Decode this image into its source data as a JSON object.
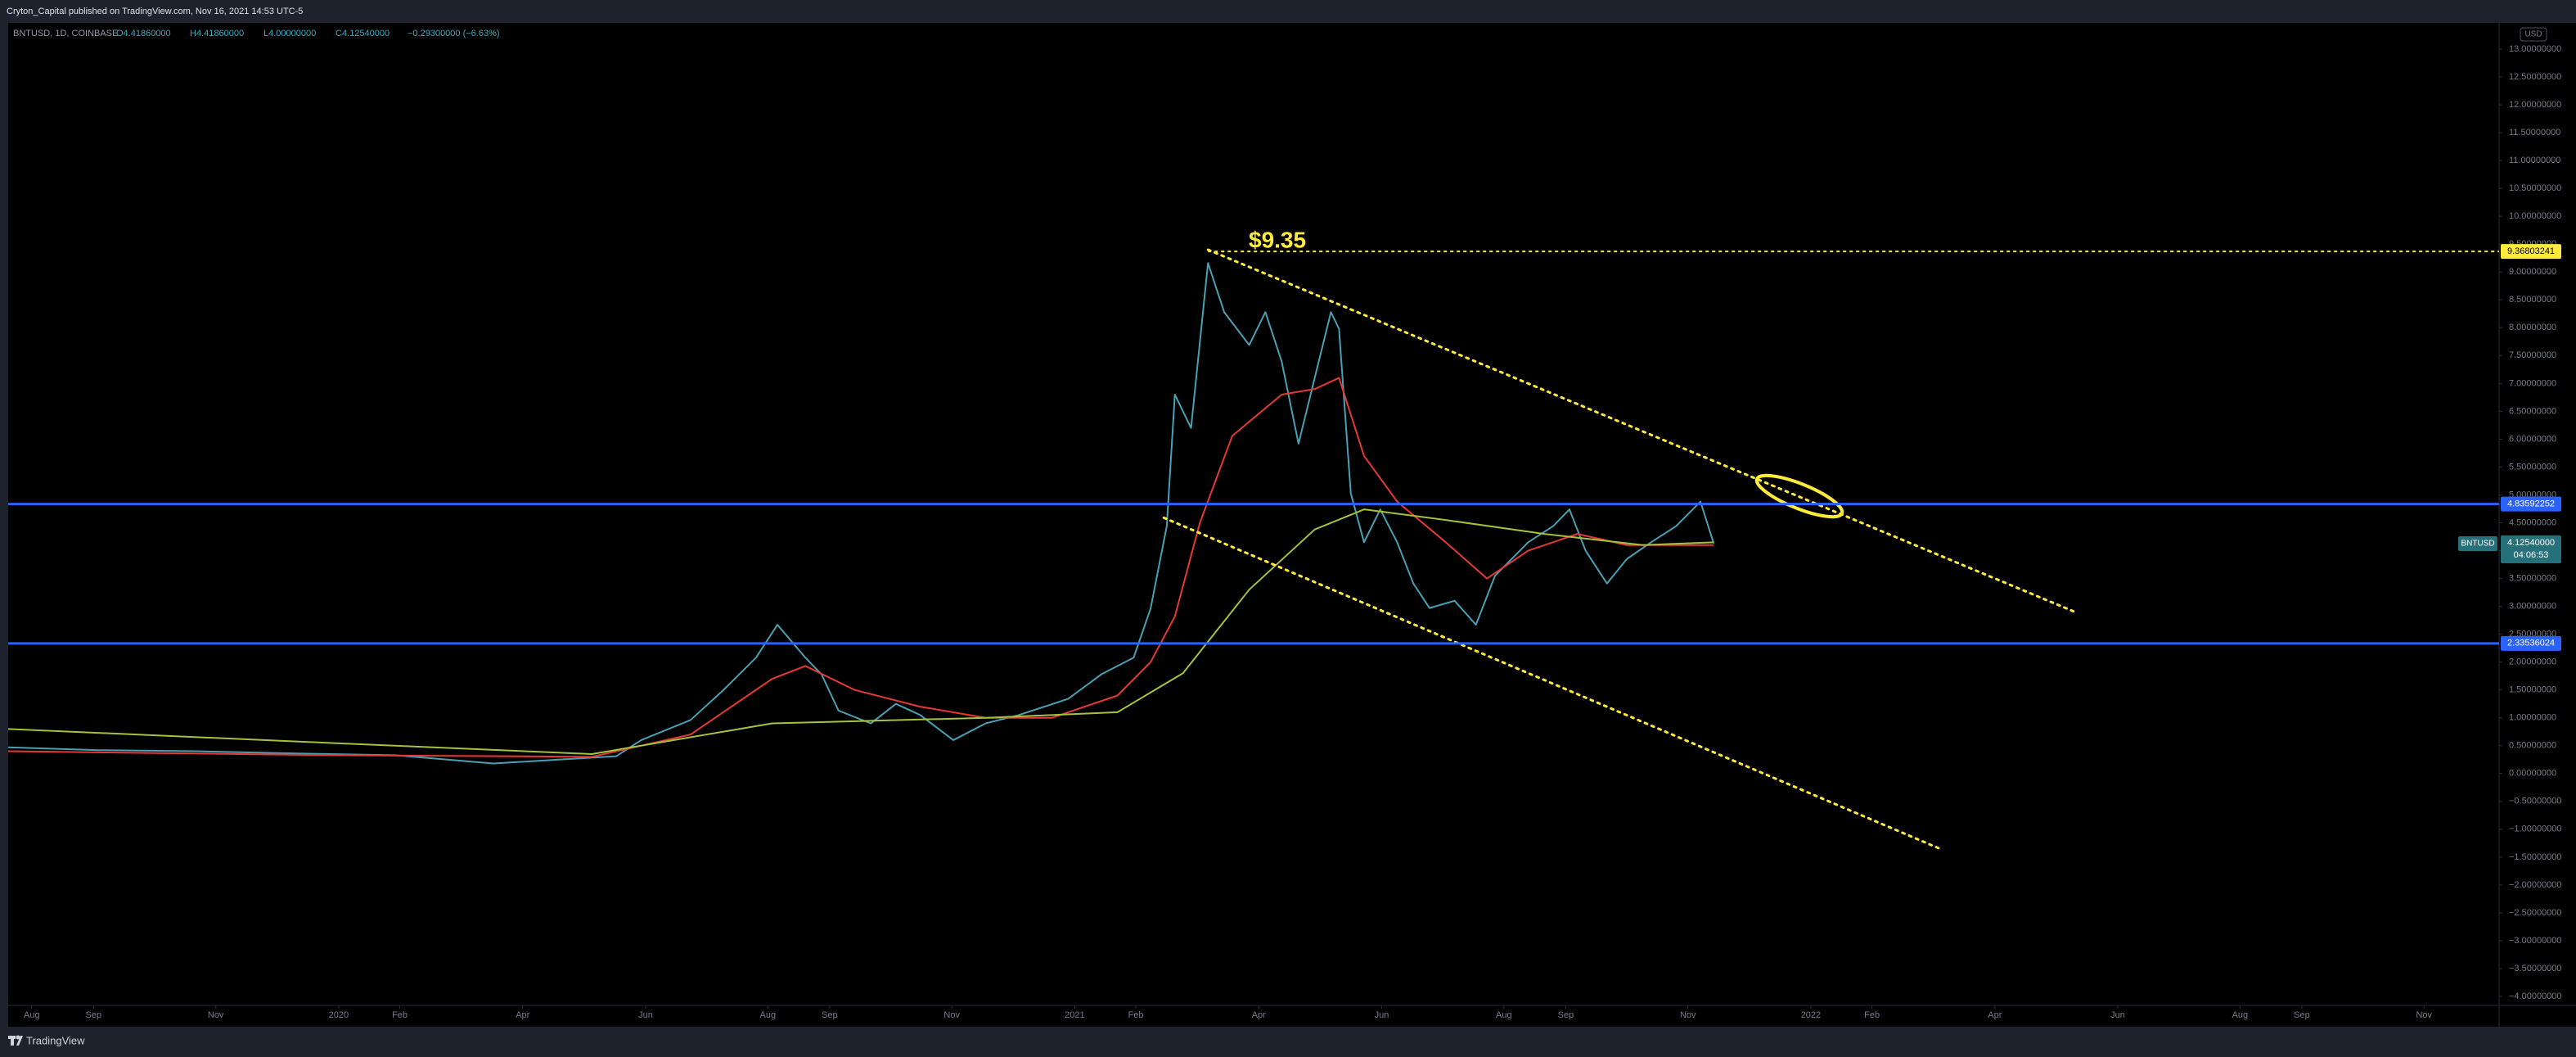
{
  "header": {
    "published": "Cryton_Capital published on TradingView.com, Nov 16, 2021 14:53 UTC-5"
  },
  "legend": {
    "symbol": "BNTUSD, 1D, COINBASE",
    "open": "O4.41860000",
    "high": "H4.41860000",
    "low": "L4.00000000",
    "close": "C4.12540000",
    "change": "−0.29300000 (−6.63%)"
  },
  "currency": "USD",
  "footer": {
    "brand": "TradingView"
  },
  "chart_data": {
    "type": "line",
    "grid": false,
    "xlim": [
      2019.551,
      2022.935
    ],
    "ylim": [
      -4.22,
      13.47
    ],
    "xticks": [
      {
        "value": 2019.583,
        "label": "Aug"
      },
      {
        "value": 2019.667,
        "label": "Sep"
      },
      {
        "value": 2019.833,
        "label": "Nov"
      },
      2020,
      {
        "value": 2020.083,
        "label": "Feb"
      },
      {
        "value": 2020.25,
        "label": "Apr"
      },
      {
        "value": 2020.417,
        "label": "Jun"
      },
      {
        "value": 2020.583,
        "label": "Aug"
      },
      {
        "value": 2020.667,
        "label": "Sep"
      },
      {
        "value": 2020.833,
        "label": "Nov"
      },
      2021,
      {
        "value": 2021.083,
        "label": "Feb"
      },
      {
        "value": 2021.25,
        "label": "Apr"
      },
      {
        "value": 2021.417,
        "label": "Jun"
      },
      {
        "value": 2021.583,
        "label": "Aug"
      },
      {
        "value": 2021.667,
        "label": "Sep"
      },
      {
        "value": 2021.833,
        "label": "Nov"
      },
      2022,
      {
        "value": 2022.083,
        "label": "Feb"
      },
      {
        "value": 2022.25,
        "label": "Apr"
      },
      {
        "value": 2022.417,
        "label": "Jun"
      },
      {
        "value": 2022.583,
        "label": "Aug"
      },
      {
        "value": 2022.667,
        "label": "Sep"
      },
      {
        "value": 2022.833,
        "label": "Nov"
      }
    ],
    "yticks": [
      {
        "value": 13,
        "label": "13.00000000"
      },
      {
        "value": 12.5,
        "label": "12.50000000"
      },
      {
        "value": 12,
        "label": "12.00000000"
      },
      {
        "value": 11.5,
        "label": "11.50000000"
      },
      {
        "value": 11,
        "label": "11.00000000"
      },
      {
        "value": 10.5,
        "label": "10.50000000"
      },
      {
        "value": 10,
        "label": "10.00000000"
      },
      {
        "value": 9.5,
        "label": "9.50000000"
      },
      {
        "value": 9,
        "label": "9.00000000"
      },
      {
        "value": 8.5,
        "label": "8.50000000"
      },
      {
        "value": 8,
        "label": "8.00000000"
      },
      {
        "value": 7.5,
        "label": "7.50000000"
      },
      {
        "value": 7,
        "label": "7.00000000"
      },
      {
        "value": 6.5,
        "label": "6.50000000"
      },
      {
        "value": 6,
        "label": "6.00000000"
      },
      {
        "value": 5.5,
        "label": "5.50000000"
      },
      {
        "value": 5,
        "label": "5.00000000"
      },
      {
        "value": 4.5,
        "label": "4.50000000"
      },
      {
        "value": 4,
        "label": "4.00000000"
      },
      {
        "value": 3.5,
        "label": "3.50000000"
      },
      {
        "value": 3,
        "label": "3.00000000"
      },
      {
        "value": 2.5,
        "label": "2.50000000"
      },
      {
        "value": 2,
        "label": "2.00000000"
      },
      {
        "value": 1.5,
        "label": "1.50000000"
      },
      {
        "value": 1,
        "label": "1.00000000"
      },
      {
        "value": 0.5,
        "label": "0.50000000"
      },
      {
        "value": 0,
        "label": "0.00000000"
      },
      {
        "value": -0.5,
        "label": "−0.50000000"
      },
      {
        "value": -1,
        "label": "−1.00000000"
      },
      {
        "value": -1.5,
        "label": "−1.50000000"
      },
      {
        "value": -2,
        "label": "−2.00000000"
      },
      {
        "value": -2.5,
        "label": "−2.50000000"
      },
      {
        "value": -3,
        "label": "−3.00000000"
      },
      {
        "value": -3.5,
        "label": "−3.50000000"
      },
      {
        "value": -4,
        "label": "−4.00000000"
      }
    ],
    "series": [
      {
        "color": "#4a9fb3",
        "width": 2,
        "x": [
          2019.551,
          2019.674,
          2019.808,
          2019.942,
          2020.076,
          2020.21,
          2020.299,
          2020.377,
          2020.411,
          2020.478,
          2020.522,
          2020.567,
          2020.596,
          2020.634,
          2020.656,
          2020.679,
          2020.723,
          2020.757,
          2020.79,
          2020.835,
          2020.879,
          2020.924,
          2020.991,
          2021.036,
          2021.08,
          2021.103,
          2021.125,
          2021.136,
          2021.158,
          2021.181,
          2021.203,
          2021.237,
          2021.259,
          2021.281,
          2021.304,
          2021.326,
          2021.348,
          2021.359,
          2021.375,
          2021.393,
          2021.415,
          2021.438,
          2021.46,
          2021.482,
          2021.516,
          2021.545,
          2021.571,
          2021.616,
          2021.65,
          2021.672,
          2021.694,
          2021.723,
          2021.75,
          2021.783,
          2021.817,
          2021.85,
          2021.868
        ],
        "values": [
          0.47,
          0.42,
          0.4,
          0.36,
          0.33,
          0.18,
          0.25,
          0.31,
          0.6,
          0.96,
          1.49,
          2.08,
          2.67,
          2.08,
          1.78,
          1.13,
          0.9,
          1.25,
          1.05,
          0.6,
          0.9,
          1.05,
          1.34,
          1.78,
          2.08,
          2.96,
          4.44,
          6.8,
          6.2,
          9.16,
          8.28,
          7.69,
          8.28,
          7.4,
          5.92,
          7.1,
          8.28,
          7.98,
          5.03,
          4.15,
          4.74,
          4.15,
          3.41,
          2.97,
          3.1,
          2.67,
          3.55,
          4.15,
          4.44,
          4.74,
          4.0,
          3.41,
          3.85,
          4.15,
          4.44,
          4.88,
          4.13
        ]
      },
      {
        "color": "#e53935",
        "width": 2,
        "x": [
          2019.551,
          2019.987,
          2020.344,
          2020.478,
          2020.589,
          2020.634,
          2020.701,
          2020.79,
          2020.879,
          2020.969,
          2021.058,
          2021.103,
          2021.136,
          2021.17,
          2021.214,
          2021.281,
          2021.326,
          2021.359,
          2021.393,
          2021.438,
          2021.504,
          2021.56,
          2021.616,
          2021.683,
          2021.75,
          2021.868
        ],
        "values": [
          0.4,
          0.33,
          0.3,
          0.7,
          1.7,
          1.93,
          1.5,
          1.2,
          1.0,
          1.0,
          1.4,
          2.0,
          2.82,
          4.5,
          6.06,
          6.8,
          6.9,
          7.1,
          5.7,
          4.88,
          4.15,
          3.5,
          4.0,
          4.3,
          4.1,
          4.1
        ]
      },
      {
        "color": "#a5c23c",
        "width": 2,
        "x": [
          2019.551,
          2019.987,
          2020.344,
          2020.589,
          2020.879,
          2021.058,
          2021.147,
          2021.237,
          2021.326,
          2021.393,
          2021.504,
          2021.638,
          2021.772,
          2021.868
        ],
        "values": [
          0.8,
          0.55,
          0.35,
          0.9,
          1.0,
          1.1,
          1.8,
          3.3,
          4.38,
          4.74,
          4.55,
          4.3,
          4.1,
          4.15
        ]
      }
    ],
    "hlines": [
      {
        "value": 4.83592252,
        "color": "#2962ff"
      },
      {
        "value": 2.33536024,
        "color": "#2962ff"
      },
      {
        "value": 9.36803241,
        "color": "#ffeb3b",
        "x_start": 2021.181,
        "dotted": true
      }
    ],
    "trendlines": [
      {
        "x": [
          2021.181,
          2022.357
        ],
        "y": [
          9.4,
          2.91
        ],
        "color": "#ffeb3b"
      },
      {
        "x": [
          2021.121,
          2022.179
        ],
        "y": [
          4.59,
          -1.37
        ],
        "color": "#ffeb3b"
      }
    ],
    "last": {
      "symbol": "BNTUSD",
      "value": 4.1254,
      "label": "4.12540000",
      "countdown": "04:06:53",
      "color": "#26707a"
    },
    "annotations": [
      "$9.35"
    ]
  }
}
